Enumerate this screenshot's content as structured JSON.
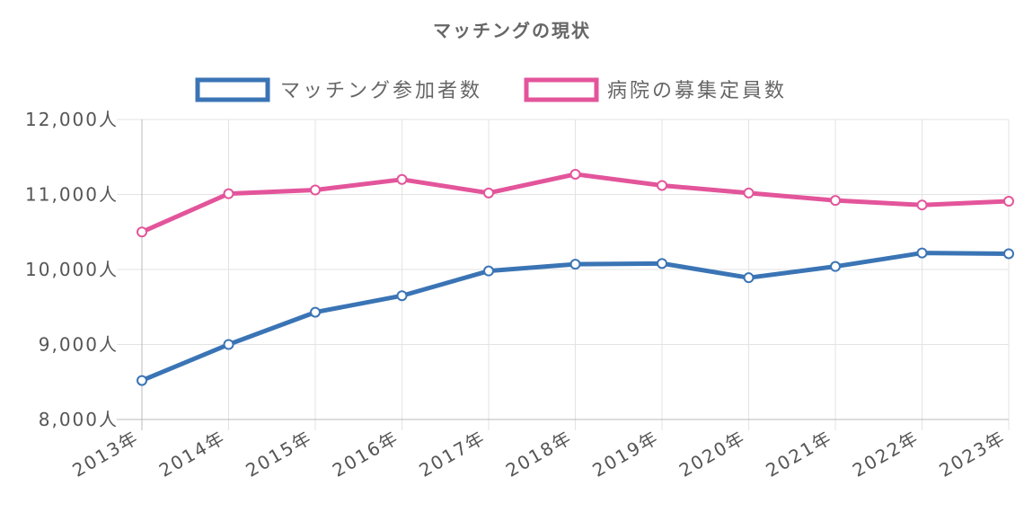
{
  "chart_data": {
    "type": "line",
    "title": "マッチングの現状",
    "xlabel": "",
    "ylabel": "",
    "categories": [
      "2013年",
      "2014年",
      "2015年",
      "2016年",
      "2017年",
      "2018年",
      "2019年",
      "2020年",
      "2021年",
      "2022年",
      "2023年"
    ],
    "y_ticks": [
      "8,000人",
      "9,000人",
      "10,000人",
      "11,000人",
      "12,000人"
    ],
    "ylim": [
      8000,
      12000
    ],
    "grid": true,
    "legend_position": "top",
    "series": [
      {
        "name": "マッチング参加者数",
        "color": "#3a74b5",
        "values": [
          8520,
          9000,
          9430,
          9650,
          9980,
          10070,
          10080,
          9890,
          10040,
          10220,
          10210
        ]
      },
      {
        "name": "病院の募集定員数",
        "color": "#e3559b",
        "values": [
          10500,
          11010,
          11060,
          11200,
          11020,
          11270,
          11120,
          11020,
          10920,
          10860,
          10910
        ]
      }
    ]
  }
}
